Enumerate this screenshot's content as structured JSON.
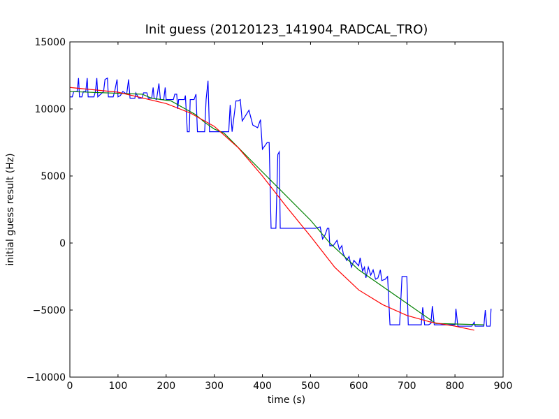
{
  "chart_data": {
    "type": "line",
    "title": "Init guess (20120123_141904_RADCAL_TRO)",
    "xlabel": "time (s)",
    "ylabel": "initial guess result (Hz)",
    "xlim": [
      0,
      900
    ],
    "xticks": [
      0,
      100,
      200,
      300,
      400,
      500,
      600,
      700,
      800,
      900
    ],
    "ylim": [
      -10000,
      15000
    ],
    "yticks": [
      {
        "value": -10000,
        "label": "−10000"
      },
      {
        "value": -5000,
        "label": "−5000"
      },
      0,
      5000,
      10000,
      15000
    ],
    "series": [
      {
        "color": "#0000ff",
        "x": [
          0,
          5,
          8,
          15,
          18,
          20,
          25,
          28,
          33,
          36,
          38,
          50,
          53,
          56,
          58,
          70,
          73,
          78,
          80,
          90,
          93,
          98,
          100,
          105,
          110,
          118,
          122,
          125,
          135,
          137,
          143,
          150,
          153,
          160,
          163,
          170,
          173,
          175,
          180,
          185,
          188,
          195,
          198,
          200,
          215,
          218,
          222,
          224,
          226,
          238,
          240,
          244,
          248,
          250,
          258,
          262,
          265,
          280,
          283,
          287,
          290,
          330,
          333,
          337,
          345,
          350,
          354,
          358,
          365,
          372,
          380,
          390,
          396,
          400,
          410,
          414,
          418,
          428,
          432,
          435,
          437,
          450,
          460,
          470,
          480,
          500,
          510,
          520,
          525,
          530,
          535,
          538,
          540,
          547,
          555,
          560,
          565,
          568,
          575,
          580,
          585,
          590,
          600,
          603,
          608,
          612,
          615,
          620,
          625,
          630,
          635,
          640,
          645,
          648,
          655,
          660,
          665,
          685,
          690,
          700,
          703,
          730,
          733,
          737,
          745,
          750,
          753,
          757,
          800,
          802,
          806,
          835,
          840,
          842,
          860,
          863,
          866,
          873,
          875
        ],
        "values": [
          10900,
          10900,
          11300,
          11300,
          12300,
          10900,
          10900,
          11300,
          11300,
          12300,
          10900,
          10900,
          11300,
          12300,
          10900,
          11300,
          12200,
          12300,
          10900,
          10900,
          11300,
          12200,
          10900,
          11000,
          11300,
          11100,
          12200,
          10800,
          10800,
          11200,
          10800,
          10800,
          11200,
          11200,
          10800,
          10800,
          11600,
          10800,
          10700,
          11900,
          10700,
          10700,
          11600,
          10700,
          10700,
          11100,
          11100,
          10000,
          10700,
          10700,
          11000,
          8300,
          8300,
          10700,
          10700,
          11100,
          8300,
          8300,
          10700,
          12100,
          8300,
          8300,
          10300,
          8300,
          10600,
          10600,
          10700,
          9100,
          9500,
          9900,
          8800,
          8600,
          9200,
          7000,
          7500,
          7500,
          1100,
          1100,
          6600,
          6800,
          1100,
          1100,
          1100,
          1100,
          1100,
          1100,
          1100,
          1200,
          300,
          600,
          1100,
          1100,
          -200,
          -200,
          200,
          -500,
          -200,
          -800,
          -1300,
          -1000,
          -1800,
          -1300,
          -1700,
          -1100,
          -2100,
          -1800,
          -2600,
          -1800,
          -2400,
          -2000,
          -2700,
          -2600,
          -2000,
          -2800,
          -2700,
          -2500,
          -6100,
          -6100,
          -2500,
          -2500,
          -6100,
          -6100,
          -4800,
          -6100,
          -6100,
          -6000,
          -4700,
          -6100,
          -6100,
          -4900,
          -6200,
          -6200,
          -5900,
          -6200,
          -6200,
          -5000,
          -6200,
          -6200,
          -4900
        ]
      },
      {
        "color": "#008000",
        "x": [
          0,
          150,
          170,
          210,
          240,
          260,
          280,
          300,
          320,
          400,
          500,
          540,
          600,
          700,
          760,
          860
        ],
        "values": [
          11300,
          11100,
          10800,
          10600,
          10000,
          9600,
          9000,
          8500,
          8200,
          5300,
          1700,
          0,
          -2000,
          -4500,
          -6000,
          -6100
        ]
      },
      {
        "color": "#ff0000",
        "x": [
          0,
          100,
          200,
          250,
          300,
          350,
          400,
          450,
          500,
          550,
          600,
          650,
          700,
          750,
          800,
          840
        ],
        "values": [
          11600,
          11250,
          10400,
          9700,
          8700,
          7100,
          5000,
          2700,
          500,
          -1800,
          -3500,
          -4600,
          -5400,
          -5900,
          -6200,
          -6500
        ]
      }
    ]
  }
}
